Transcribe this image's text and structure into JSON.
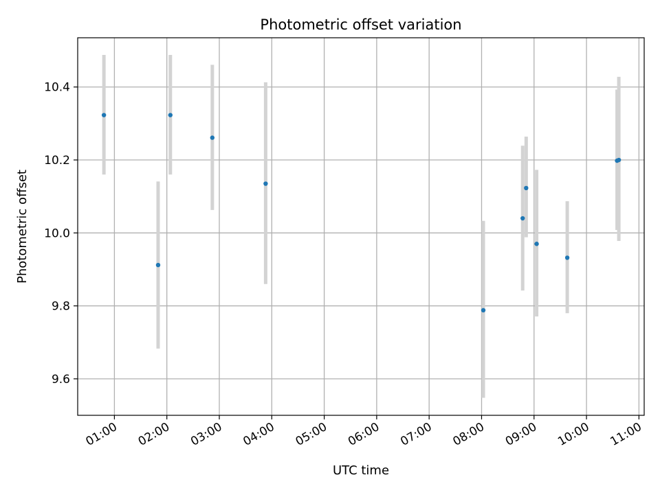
{
  "chart_data": {
    "type": "scatter",
    "title": "Photometric offset variation",
    "xlabel": "UTC time",
    "ylabel": "Photometric offset",
    "xlim": [
      "00:18",
      "11:06"
    ],
    "ylim": [
      9.5,
      10.535
    ],
    "x_ticks": [
      "01:00",
      "02:00",
      "03:00",
      "04:00",
      "05:00",
      "06:00",
      "07:00",
      "08:00",
      "09:00",
      "10:00",
      "11:00"
    ],
    "y_ticks": [
      9.6,
      9.8,
      10.0,
      10.2,
      10.4
    ],
    "grid": true,
    "point_color": "#1f77b4",
    "errorbar_color": "#d3d3d3",
    "points": [
      {
        "time": "00:48",
        "value": 10.323,
        "low": 10.16,
        "high": 10.488
      },
      {
        "time": "01:50",
        "value": 9.912,
        "low": 9.683,
        "high": 10.141
      },
      {
        "time": "02:04",
        "value": 10.323,
        "low": 10.16,
        "high": 10.488
      },
      {
        "time": "02:52",
        "value": 10.261,
        "low": 10.063,
        "high": 10.461
      },
      {
        "time": "03:53",
        "value": 10.135,
        "low": 9.86,
        "high": 10.413
      },
      {
        "time": "08:02",
        "value": 9.788,
        "low": 9.548,
        "high": 10.033
      },
      {
        "time": "08:47",
        "value": 10.04,
        "low": 9.842,
        "high": 10.239
      },
      {
        "time": "08:51",
        "value": 10.123,
        "low": 9.988,
        "high": 10.264
      },
      {
        "time": "09:03",
        "value": 9.97,
        "low": 9.771,
        "high": 10.173
      },
      {
        "time": "09:38",
        "value": 9.932,
        "low": 9.78,
        "high": 10.087
      },
      {
        "time": "10:35",
        "value": 10.198,
        "low": 10.008,
        "high": 10.393
      },
      {
        "time": "10:37",
        "value": 10.2,
        "low": 9.978,
        "high": 10.428
      }
    ]
  }
}
